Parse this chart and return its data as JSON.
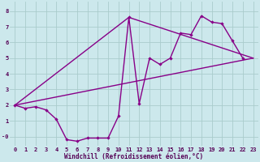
{
  "xlabel": "Windchill (Refroidissement éolien,°C)",
  "xlim": [
    -0.5,
    23.5
  ],
  "ylim": [
    -0.6,
    8.6
  ],
  "xticks": [
    0,
    1,
    2,
    3,
    4,
    5,
    6,
    7,
    8,
    9,
    10,
    11,
    12,
    13,
    14,
    15,
    16,
    17,
    18,
    19,
    20,
    21,
    22,
    23
  ],
  "yticks": [
    0,
    1,
    2,
    3,
    4,
    5,
    6,
    7,
    8
  ],
  "ytick_labels": [
    "-0",
    "1",
    "2",
    "3",
    "4",
    "5",
    "6",
    "7",
    "8"
  ],
  "bg_color": "#cce8ec",
  "grid_color": "#aacccc",
  "line_color": "#880088",
  "line_width": 1.0,
  "marker": "D",
  "markersize": 2.2,
  "line1_x": [
    0,
    1,
    2,
    3,
    4,
    5,
    6,
    7,
    8,
    9,
    10,
    11,
    12,
    13,
    14,
    15,
    16,
    17,
    18,
    19,
    20,
    21,
    22
  ],
  "line1_y": [
    2.0,
    1.8,
    1.9,
    1.7,
    1.1,
    -0.2,
    -0.3,
    -0.1,
    -0.1,
    -0.1,
    1.3,
    7.6,
    2.1,
    5.0,
    4.6,
    5.0,
    6.6,
    6.5,
    7.7,
    7.3,
    7.2,
    6.1,
    5.0
  ],
  "line2_x": [
    0,
    23
  ],
  "line2_y": [
    2.0,
    5.0
  ],
  "line3_x": [
    0,
    11,
    23
  ],
  "line3_y": [
    2.0,
    7.6,
    5.0
  ],
  "tick_fontsize": 5.0,
  "xlabel_fontsize": 5.5,
  "tick_color": "#550055",
  "xlabel_color": "#550055"
}
